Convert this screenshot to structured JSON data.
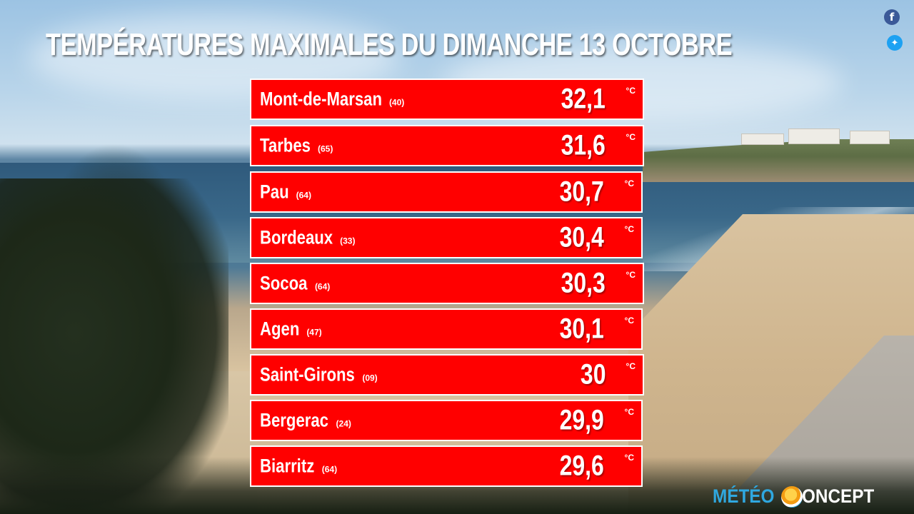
{
  "title": "TEMPÉRATURES MAXIMALES DU DIMANCHE 13 OCTOBRE",
  "social": {
    "facebook_icon": "facebook-icon",
    "twitter_icon": "twitter-icon"
  },
  "unit": "°C",
  "rows": [
    {
      "city": "Mont-de-Marsan",
      "dept": "(40)",
      "value": "32,1"
    },
    {
      "city": "Tarbes",
      "dept": "(65)",
      "value": "31,6"
    },
    {
      "city": "Pau",
      "dept": "(64)",
      "value": "30,7"
    },
    {
      "city": "Bordeaux",
      "dept": "(33)",
      "value": "30,4"
    },
    {
      "city": "Socoa",
      "dept": "(64)",
      "value": "30,3"
    },
    {
      "city": "Agen",
      "dept": "(47)",
      "value": "30,1"
    },
    {
      "city": "Saint-Girons",
      "dept": "(09)",
      "value": "30"
    },
    {
      "city": "Bergerac",
      "dept": "(24)",
      "value": "29,9"
    },
    {
      "city": "Biarritz",
      "dept": "(64)",
      "value": "29,6"
    }
  ],
  "logo": {
    "part1": "MÉTÉO",
    "part2": "ONCEPT"
  },
  "colors": {
    "row_background": "#ff0000",
    "row_border": "#ffffff",
    "logo_blue": "#2fa8e0"
  }
}
